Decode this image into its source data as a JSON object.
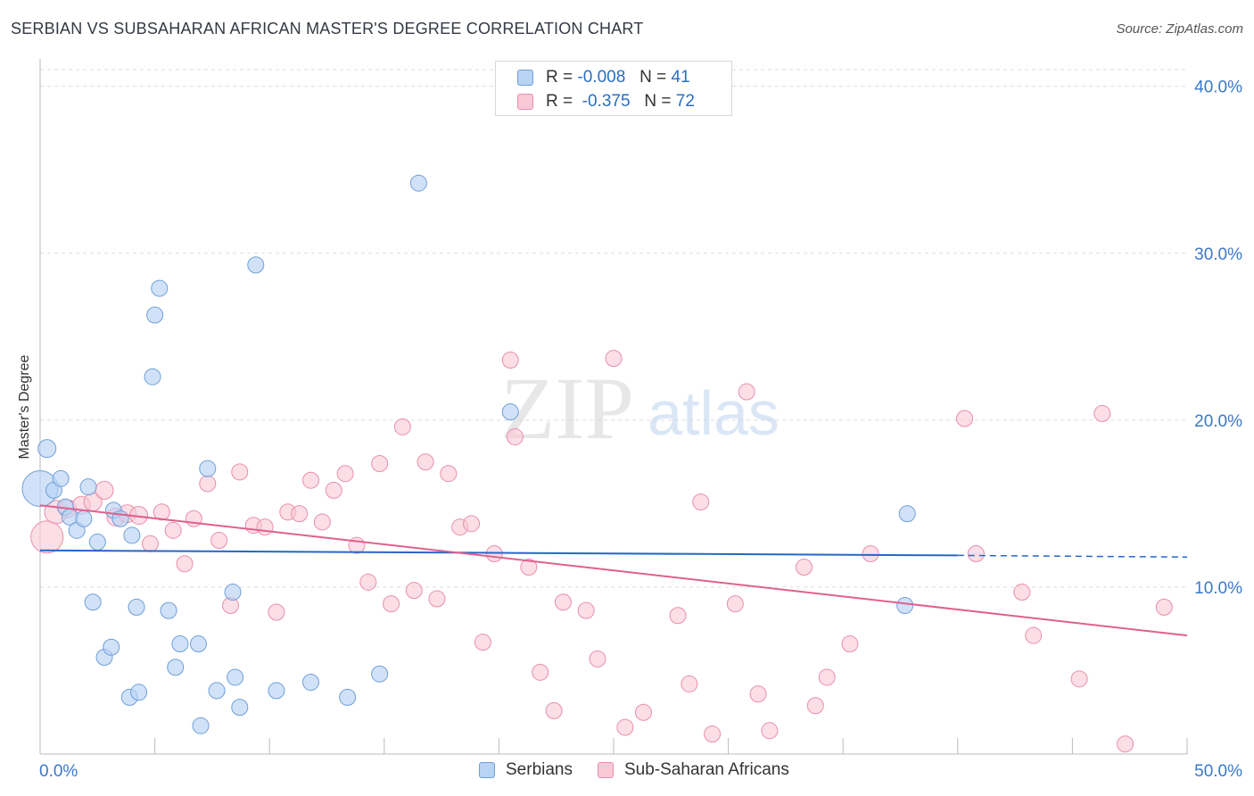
{
  "header": {
    "title": "SERBIAN VS SUBSAHARAN AFRICAN MASTER'S DEGREE CORRELATION CHART",
    "source": "Source: ZipAtlas.com"
  },
  "legend": {
    "serbians": {
      "r_label": "R =",
      "r_value": "-0.008",
      "n_label": "N =",
      "n_value": "41"
    },
    "subsaharan": {
      "r_label": "R =",
      "r_value": "-0.375",
      "n_label": "N =",
      "n_value": "72"
    }
  },
  "bottom_legend": {
    "serbians": "Serbians",
    "subsaharan": "Sub-Saharan Africans"
  },
  "watermark": {
    "zip": "ZIP",
    "atlas": "atlas"
  },
  "colors": {
    "serbians_fill": "#b8d3f4",
    "serbians_stroke": "#6f9fd8",
    "serbians_line": "#2567c8",
    "subsaharan_fill": "#f9c8d6",
    "subsaharan_stroke": "#e98fab",
    "subsaharan_line": "#e0608e",
    "axis_text": "#3a78c9",
    "grid": "#dddddd"
  },
  "chart_data": {
    "type": "scatter",
    "title": "SERBIAN VS SUBSAHARAN AFRICAN MASTER'S DEGREE CORRELATION CHART",
    "xlabel": "",
    "ylabel": "Master's Degree",
    "xlim": [
      0,
      50
    ],
    "ylim": [
      0,
      41
    ],
    "x_tick_labels": [
      "0.0%",
      "50.0%"
    ],
    "y_ticks": [
      10,
      20,
      30,
      40
    ],
    "y_tick_labels": [
      "10.0%",
      "20.0%",
      "30.0%",
      "40.0%"
    ],
    "grid": true,
    "legend_position": "top-center",
    "series": [
      {
        "name": "Serbians",
        "r": -0.008,
        "n": 41,
        "trend": {
          "x": [
            0,
            40
          ],
          "y": [
            12.2,
            11.9
          ],
          "dashed_to": 50,
          "dashed_y": 11.8
        },
        "points": [
          [
            0.0,
            15.9,
            20
          ],
          [
            0.3,
            18.3,
            10
          ],
          [
            0.6,
            15.8,
            9
          ],
          [
            0.9,
            16.5,
            9
          ],
          [
            1.1,
            14.8,
            9
          ],
          [
            1.3,
            14.2,
            9
          ],
          [
            1.6,
            13.4,
            9
          ],
          [
            1.9,
            14.1,
            9
          ],
          [
            2.1,
            16.0,
            9
          ],
          [
            2.5,
            12.7,
            9
          ],
          [
            3.2,
            14.6,
            9
          ],
          [
            3.5,
            14.1,
            9
          ],
          [
            4.0,
            13.1,
            9
          ],
          [
            4.9,
            22.6,
            9
          ],
          [
            5.0,
            26.3,
            9
          ],
          [
            5.2,
            27.9,
            9
          ],
          [
            7.3,
            17.1,
            9
          ],
          [
            9.4,
            29.3,
            9
          ],
          [
            16.5,
            34.2,
            9
          ],
          [
            20.5,
            20.5,
            9
          ],
          [
            2.3,
            9.1,
            9
          ],
          [
            2.8,
            5.8,
            9
          ],
          [
            3.1,
            6.4,
            9
          ],
          [
            3.9,
            3.4,
            9
          ],
          [
            4.3,
            3.7,
            9
          ],
          [
            4.2,
            8.8,
            9
          ],
          [
            5.6,
            8.6,
            9
          ],
          [
            5.9,
            5.2,
            9
          ],
          [
            6.1,
            6.6,
            9
          ],
          [
            6.9,
            6.6,
            9
          ],
          [
            7.0,
            1.7,
            9
          ],
          [
            7.7,
            3.8,
            9
          ],
          [
            8.5,
            4.6,
            9
          ],
          [
            8.7,
            2.8,
            9
          ],
          [
            8.4,
            9.7,
            9
          ],
          [
            10.3,
            3.8,
            9
          ],
          [
            11.8,
            4.3,
            9
          ],
          [
            13.4,
            3.4,
            9
          ],
          [
            14.8,
            4.8,
            9
          ],
          [
            37.8,
            14.4,
            9
          ],
          [
            37.7,
            8.9,
            9
          ]
        ]
      },
      {
        "name": "Sub-Saharan Africans",
        "r": -0.375,
        "n": 72,
        "trend": {
          "x": [
            0,
            50
          ],
          "y": [
            14.9,
            7.1
          ]
        },
        "points": [
          [
            0.3,
            13.0,
            18
          ],
          [
            0.7,
            14.5,
            13
          ],
          [
            1.2,
            14.7,
            10
          ],
          [
            1.8,
            14.9,
            10
          ],
          [
            2.3,
            15.1,
            10
          ],
          [
            2.8,
            15.8,
            10
          ],
          [
            3.3,
            14.2,
            10
          ],
          [
            3.8,
            14.4,
            10
          ],
          [
            4.3,
            14.3,
            10
          ],
          [
            4.8,
            12.6,
            9
          ],
          [
            5.3,
            14.5,
            9
          ],
          [
            5.8,
            13.4,
            9
          ],
          [
            6.3,
            11.4,
            9
          ],
          [
            6.7,
            14.1,
            9
          ],
          [
            7.3,
            16.2,
            9
          ],
          [
            7.8,
            12.8,
            9
          ],
          [
            8.3,
            8.9,
            9
          ],
          [
            8.7,
            16.9,
            9
          ],
          [
            9.3,
            13.7,
            9
          ],
          [
            9.8,
            13.6,
            9
          ],
          [
            10.3,
            8.5,
            9
          ],
          [
            10.8,
            14.5,
            9
          ],
          [
            11.3,
            14.4,
            9
          ],
          [
            11.8,
            16.4,
            9
          ],
          [
            12.3,
            13.9,
            9
          ],
          [
            12.8,
            15.8,
            9
          ],
          [
            13.3,
            16.8,
            9
          ],
          [
            13.8,
            12.5,
            9
          ],
          [
            14.3,
            10.3,
            9
          ],
          [
            14.8,
            17.4,
            9
          ],
          [
            15.3,
            9.0,
            9
          ],
          [
            15.8,
            19.6,
            9
          ],
          [
            16.3,
            9.8,
            9
          ],
          [
            16.8,
            17.5,
            9
          ],
          [
            17.3,
            9.3,
            9
          ],
          [
            17.8,
            16.8,
            9
          ],
          [
            18.3,
            13.6,
            9
          ],
          [
            18.8,
            13.8,
            9
          ],
          [
            19.3,
            6.7,
            9
          ],
          [
            19.8,
            12.0,
            9
          ],
          [
            20.5,
            23.6,
            9
          ],
          [
            20.7,
            19.0,
            9
          ],
          [
            21.3,
            11.2,
            9
          ],
          [
            21.8,
            4.9,
            9
          ],
          [
            22.4,
            2.6,
            9
          ],
          [
            22.8,
            9.1,
            9
          ],
          [
            23.8,
            8.6,
            9
          ],
          [
            24.3,
            5.7,
            9
          ],
          [
            25.0,
            23.7,
            9
          ],
          [
            25.5,
            1.6,
            9
          ],
          [
            26.3,
            2.5,
            9
          ],
          [
            27.8,
            8.3,
            9
          ],
          [
            28.3,
            4.2,
            9
          ],
          [
            28.8,
            15.1,
            9
          ],
          [
            29.3,
            1.2,
            9
          ],
          [
            30.3,
            9.0,
            9
          ],
          [
            30.8,
            21.7,
            9
          ],
          [
            31.3,
            3.6,
            9
          ],
          [
            31.8,
            1.4,
            9
          ],
          [
            33.3,
            11.2,
            9
          ],
          [
            33.8,
            2.9,
            9
          ],
          [
            34.3,
            4.6,
            9
          ],
          [
            35.3,
            6.6,
            9
          ],
          [
            36.2,
            12.0,
            9
          ],
          [
            40.3,
            20.1,
            9
          ],
          [
            40.8,
            12.0,
            9
          ],
          [
            42.8,
            9.7,
            9
          ],
          [
            43.3,
            7.1,
            9
          ],
          [
            45.3,
            4.5,
            9
          ],
          [
            46.3,
            20.4,
            9
          ],
          [
            47.3,
            0.6,
            9
          ],
          [
            49.0,
            8.8,
            9
          ]
        ]
      }
    ]
  }
}
